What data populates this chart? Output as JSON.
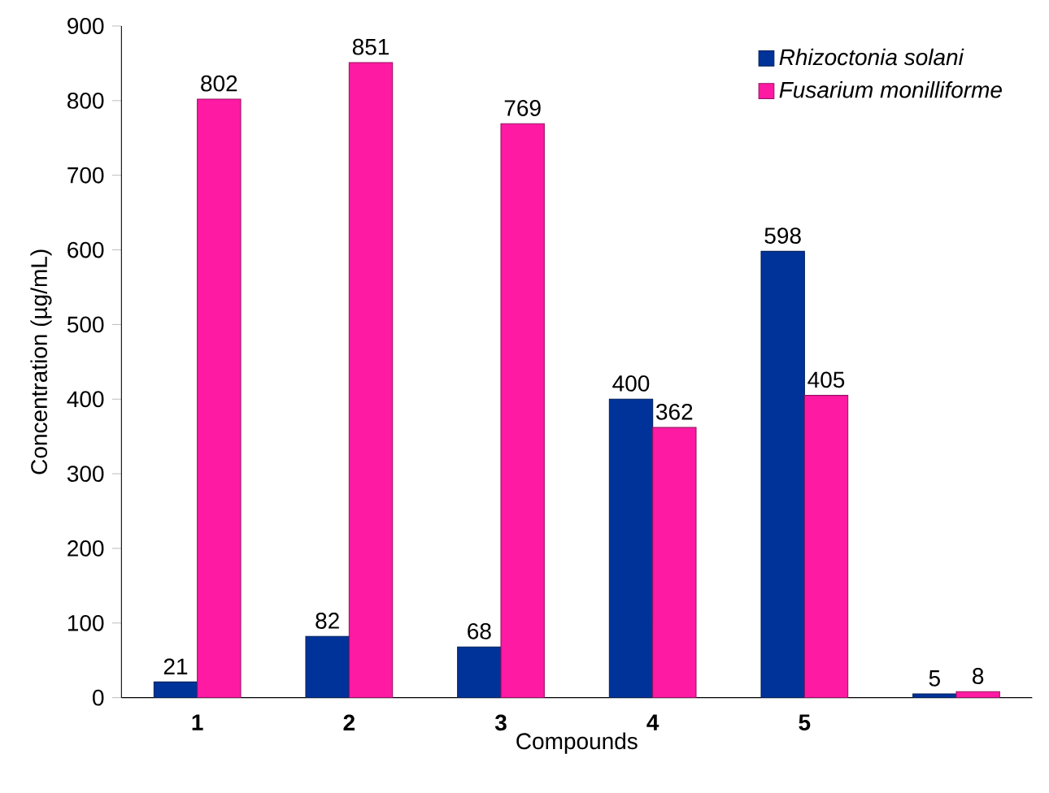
{
  "chart_data": {
    "type": "bar",
    "xlabel": "Compounds",
    "ylabel": "Concentration (µg/mL)",
    "categories": [
      "1",
      "2",
      "3",
      "4",
      "5",
      null
    ],
    "series": [
      {
        "name": "Rhizoctonia solani",
        "color": "#003399",
        "values": [
          21,
          82,
          68,
          400,
          598,
          5
        ]
      },
      {
        "name": "Fusarium monilliforme",
        "color": "#ff1aa3",
        "values": [
          802,
          851,
          769,
          362,
          405,
          8
        ]
      }
    ],
    "ylim": [
      0,
      900
    ],
    "yticks": [
      0,
      100,
      200,
      300,
      400,
      500,
      600,
      700,
      800,
      900
    ],
    "data_labels": true,
    "legend": "top right",
    "grid": false
  }
}
